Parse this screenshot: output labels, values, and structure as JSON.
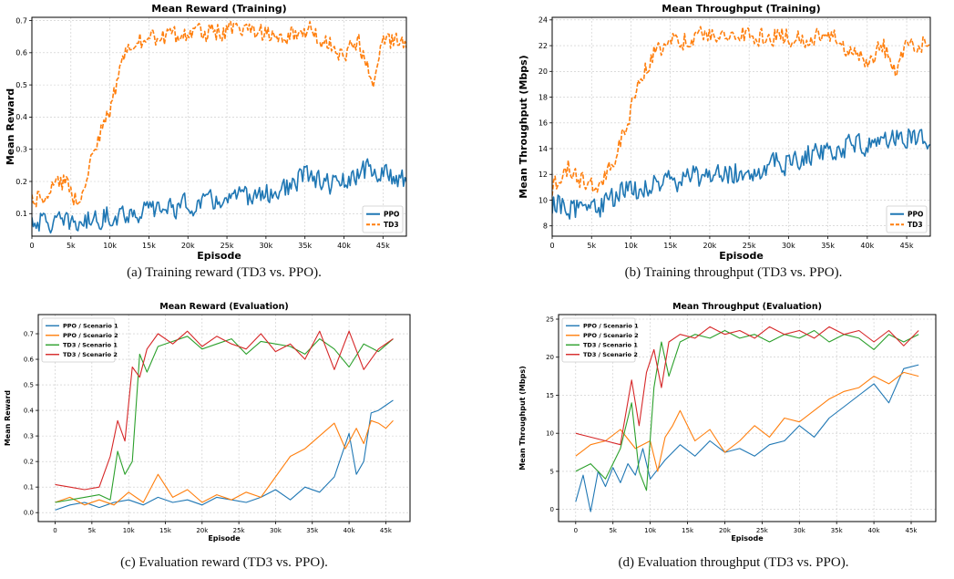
{
  "colors": {
    "ppo": "#1f77b4",
    "td3": "#ff7f0e",
    "td3_s1": "#2ca02c",
    "td3_s2": "#d62728",
    "grid": "#c8c8c8"
  },
  "captions": {
    "a": "(a) Training reward (TD3 vs. PPO).",
    "b": "(b) Training throughput (TD3 vs. PPO).",
    "c": "(c) Evaluation reward (TD3 vs. PPO).",
    "d": "(d) Evaluation throughput (TD3 vs. PPO)."
  },
  "chart_data": [
    {
      "id": "a",
      "type": "line",
      "title": "Mean Reward (Training)",
      "xlabel": "Episode",
      "ylabel": "Mean Reward",
      "xlim": [
        0,
        48000
      ],
      "ylim": [
        0.03,
        0.71
      ],
      "xticks": [
        0,
        5000,
        10000,
        15000,
        20000,
        25000,
        30000,
        35000,
        40000,
        45000
      ],
      "xticklabels": [
        "0",
        "5k",
        "10k",
        "15k",
        "20k",
        "25k",
        "30k",
        "35k",
        "40k",
        "45k"
      ],
      "yticks": [
        0.1,
        0.2,
        0.3,
        0.4,
        0.5,
        0.6,
        0.7
      ],
      "yticklabels": [
        "0.1",
        "0.2",
        "0.3",
        "0.4",
        "0.5",
        "0.6",
        "0.7"
      ],
      "grid": true,
      "legend": "bottom-right",
      "noisy": true,
      "series": [
        {
          "name": "PPO",
          "color": "#1f77b4",
          "dashed": false,
          "noise": 0.02,
          "x": [
            0,
            3000,
            6000,
            9000,
            12000,
            15000,
            18000,
            21000,
            24000,
            27000,
            30000,
            33000,
            35000,
            38000,
            41000,
            43000,
            45000,
            48000
          ],
          "y": [
            0.08,
            0.07,
            0.07,
            0.09,
            0.1,
            0.11,
            0.12,
            0.13,
            0.14,
            0.15,
            0.16,
            0.18,
            0.22,
            0.19,
            0.2,
            0.24,
            0.22,
            0.21
          ]
        },
        {
          "name": "TD3",
          "color": "#ff7f0e",
          "dashed": true,
          "noise": 0.018,
          "x": [
            0,
            2000,
            4000,
            6000,
            8000,
            10000,
            11000,
            12000,
            13000,
            15000,
            18000,
            21000,
            25000,
            30000,
            34000,
            35500,
            37000,
            40000,
            42000,
            43700,
            45000,
            48000
          ],
          "y": [
            0.15,
            0.17,
            0.2,
            0.14,
            0.3,
            0.42,
            0.52,
            0.6,
            0.63,
            0.64,
            0.65,
            0.66,
            0.67,
            0.66,
            0.66,
            0.68,
            0.64,
            0.6,
            0.63,
            0.5,
            0.64,
            0.62
          ]
        }
      ]
    },
    {
      "id": "b",
      "type": "line",
      "title": "Mean Throughput (Training)",
      "xlabel": "Episode",
      "ylabel": "Mean Throughput (Mbps)",
      "xlim": [
        0,
        48000
      ],
      "ylim": [
        7.2,
        24.2
      ],
      "xticks": [
        0,
        5000,
        10000,
        15000,
        20000,
        25000,
        30000,
        35000,
        40000,
        45000
      ],
      "xticklabels": [
        "0",
        "5k",
        "10k",
        "15k",
        "20k",
        "25k",
        "30k",
        "35k",
        "40k",
        "45k"
      ],
      "yticks": [
        8,
        10,
        12,
        14,
        16,
        18,
        20,
        22,
        24
      ],
      "yticklabels": [
        "8",
        "10",
        "12",
        "14",
        "16",
        "18",
        "20",
        "22",
        "24"
      ],
      "grid": true,
      "legend": "bottom-right",
      "noisy": true,
      "series": [
        {
          "name": "PPO",
          "color": "#1f77b4",
          "dashed": false,
          "noise": 0.55,
          "x": [
            0,
            3000,
            6000,
            9000,
            12000,
            15000,
            18000,
            21000,
            24000,
            27000,
            30000,
            33000,
            35000,
            38000,
            41000,
            44000,
            46000,
            48000
          ],
          "y": [
            9.8,
            9.4,
            9.5,
            10.6,
            11.0,
            11.4,
            11.8,
            12.0,
            12.2,
            12.6,
            13.0,
            13.6,
            14.0,
            14.2,
            14.4,
            15.4,
            14.8,
            14.6
          ]
        },
        {
          "name": "TD3",
          "color": "#ff7f0e",
          "dashed": true,
          "noise": 0.45,
          "x": [
            0,
            2000,
            4000,
            6000,
            8000,
            10000,
            11000,
            12000,
            13000,
            15000,
            18000,
            22000,
            26000,
            30000,
            34000,
            35500,
            37000,
            40000,
            42000,
            43700,
            45000,
            48000
          ],
          "y": [
            11.0,
            12.5,
            11.5,
            11.0,
            13.5,
            17.0,
            19.0,
            20.5,
            21.5,
            22.3,
            22.6,
            22.8,
            22.8,
            22.8,
            22.6,
            23.0,
            22.0,
            20.5,
            22.0,
            19.5,
            22.5,
            22.0
          ]
        }
      ]
    },
    {
      "id": "c",
      "type": "line",
      "title": "Mean Reward (Evaluation)",
      "xlabel": "Episode",
      "ylabel": "Mean Reward",
      "xlim": [
        -2300,
        48300
      ],
      "ylim": [
        -0.035,
        0.775
      ],
      "xticks": [
        0,
        5000,
        10000,
        15000,
        20000,
        25000,
        30000,
        35000,
        40000,
        45000
      ],
      "xticklabels": [
        "0",
        "5k",
        "10k",
        "15k",
        "20k",
        "25k",
        "30k",
        "35k",
        "40k",
        "45k"
      ],
      "yticks": [
        0.0,
        0.1,
        0.2,
        0.3,
        0.4,
        0.5,
        0.6,
        0.7
      ],
      "yticklabels": [
        "0.0",
        "0.1",
        "0.2",
        "0.3",
        "0.4",
        "0.5",
        "0.6",
        "0.7"
      ],
      "grid": true,
      "legend": "top-left",
      "noisy": false,
      "series": [
        {
          "name": "PPO / Scenario 1",
          "color": "#1f77b4",
          "dashed": false,
          "x": [
            0,
            2000,
            4000,
            6000,
            8000,
            10000,
            12000,
            14000,
            16000,
            18000,
            20000,
            22000,
            24000,
            26000,
            28000,
            30000,
            32000,
            34000,
            36000,
            38000,
            40000,
            41000,
            42000,
            43000,
            44000,
            45000,
            46000
          ],
          "y": [
            0.01,
            0.03,
            0.04,
            0.02,
            0.04,
            0.05,
            0.03,
            0.06,
            0.04,
            0.05,
            0.03,
            0.06,
            0.05,
            0.04,
            0.06,
            0.09,
            0.05,
            0.1,
            0.08,
            0.14,
            0.31,
            0.15,
            0.2,
            0.39,
            0.4,
            0.42,
            0.44
          ]
        },
        {
          "name": "PPO / Scenario 2",
          "color": "#ff7f0e",
          "dashed": false,
          "x": [
            0,
            2000,
            4000,
            6000,
            8000,
            10000,
            12000,
            14000,
            16000,
            18000,
            20000,
            22000,
            24000,
            26000,
            28000,
            30000,
            32000,
            34000,
            36000,
            38000,
            39500,
            41000,
            42000,
            43000,
            44000,
            45000,
            46000
          ],
          "y": [
            0.04,
            0.06,
            0.03,
            0.05,
            0.03,
            0.08,
            0.04,
            0.15,
            0.06,
            0.09,
            0.04,
            0.07,
            0.05,
            0.08,
            0.06,
            0.14,
            0.22,
            0.25,
            0.3,
            0.35,
            0.25,
            0.33,
            0.27,
            0.36,
            0.35,
            0.33,
            0.36
          ]
        },
        {
          "name": "TD3 / Scenario 1",
          "color": "#2ca02c",
          "dashed": false,
          "x": [
            0,
            2000,
            4000,
            6000,
            7500,
            8500,
            9500,
            10500,
            11500,
            12500,
            14000,
            16000,
            18000,
            20000,
            22000,
            24000,
            26000,
            28000,
            30000,
            32000,
            34000,
            36000,
            38000,
            40000,
            42000,
            44000,
            46000
          ],
          "y": [
            0.04,
            0.05,
            0.06,
            0.07,
            0.05,
            0.24,
            0.15,
            0.2,
            0.62,
            0.55,
            0.65,
            0.67,
            0.69,
            0.64,
            0.66,
            0.68,
            0.62,
            0.67,
            0.66,
            0.65,
            0.62,
            0.68,
            0.64,
            0.57,
            0.66,
            0.63,
            0.68
          ]
        },
        {
          "name": "TD3 / Scenario 2",
          "color": "#d62728",
          "dashed": false,
          "x": [
            0,
            2000,
            4000,
            6000,
            7500,
            8500,
            9500,
            10500,
            11500,
            12500,
            14000,
            16000,
            18000,
            20000,
            22000,
            24000,
            26000,
            28000,
            30000,
            32000,
            34000,
            36000,
            38000,
            40000,
            42000,
            44000,
            46000
          ],
          "y": [
            0.11,
            0.1,
            0.09,
            0.1,
            0.22,
            0.36,
            0.28,
            0.57,
            0.53,
            0.64,
            0.7,
            0.66,
            0.71,
            0.65,
            0.69,
            0.66,
            0.64,
            0.7,
            0.63,
            0.66,
            0.6,
            0.71,
            0.56,
            0.71,
            0.56,
            0.64,
            0.68
          ]
        }
      ]
    },
    {
      "id": "d",
      "type": "line",
      "title": "Mean Throughput (Evaluation)",
      "xlabel": "Episode",
      "ylabel": "Mean Throughput (Mbps)",
      "xlim": [
        -2300,
        48300
      ],
      "ylim": [
        -1.6,
        25.6
      ],
      "xticks": [
        0,
        5000,
        10000,
        15000,
        20000,
        25000,
        30000,
        35000,
        40000,
        45000
      ],
      "xticklabels": [
        "0",
        "5k",
        "10k",
        "15k",
        "20k",
        "25k",
        "30k",
        "35k",
        "40k",
        "45k"
      ],
      "yticks": [
        0,
        5,
        10,
        15,
        20,
        25
      ],
      "yticklabels": [
        "0",
        "5",
        "10",
        "15",
        "20",
        "25"
      ],
      "grid": true,
      "legend": "top-left",
      "noisy": false,
      "series": [
        {
          "name": "PPO / Scenario 1",
          "color": "#1f77b4",
          "dashed": false,
          "x": [
            0,
            1000,
            2000,
            3000,
            4000,
            5000,
            6000,
            7000,
            8000,
            9000,
            10000,
            12000,
            14000,
            16000,
            18000,
            20000,
            22000,
            24000,
            26000,
            28000,
            30000,
            32000,
            34000,
            36000,
            38000,
            40000,
            42000,
            44000,
            46000
          ],
          "y": [
            1.0,
            4.5,
            -0.3,
            5.0,
            3.0,
            5.5,
            3.5,
            6.0,
            4.5,
            8.0,
            4.0,
            6.5,
            8.5,
            7.0,
            9.0,
            7.5,
            8.0,
            7.0,
            8.5,
            9.0,
            11.0,
            9.5,
            12.0,
            13.5,
            15.0,
            16.5,
            14.0,
            18.5,
            19.0
          ]
        },
        {
          "name": "PPO / Scenario 2",
          "color": "#ff7f0e",
          "dashed": false,
          "x": [
            0,
            2000,
            4000,
            6000,
            8000,
            10000,
            11000,
            12000,
            13000,
            14000,
            16000,
            18000,
            20000,
            22000,
            24000,
            26000,
            28000,
            30000,
            32000,
            34000,
            36000,
            38000,
            40000,
            42000,
            44000,
            46000
          ],
          "y": [
            7.0,
            8.5,
            9.0,
            10.5,
            8.0,
            9.0,
            5.0,
            9.5,
            11.0,
            13.0,
            9.0,
            10.5,
            7.5,
            9.0,
            11.0,
            9.5,
            12.0,
            11.5,
            13.0,
            14.5,
            15.5,
            16.0,
            17.5,
            16.5,
            18.0,
            17.5
          ]
        },
        {
          "name": "TD3 / Scenario 1",
          "color": "#2ca02c",
          "dashed": false,
          "x": [
            0,
            2000,
            4000,
            6000,
            7500,
            8500,
            9500,
            10500,
            11500,
            12500,
            14000,
            16000,
            18000,
            20000,
            22000,
            24000,
            26000,
            28000,
            30000,
            32000,
            34000,
            36000,
            38000,
            40000,
            42000,
            44000,
            46000
          ],
          "y": [
            5.0,
            6.0,
            4.0,
            8.0,
            14.0,
            5.0,
            2.5,
            16.0,
            22.0,
            17.5,
            22.0,
            23.0,
            22.5,
            23.5,
            22.5,
            23.0,
            22.0,
            23.0,
            22.5,
            23.5,
            22.0,
            23.0,
            22.5,
            21.0,
            23.0,
            22.0,
            23.0
          ]
        },
        {
          "name": "TD3 / Scenario 2",
          "color": "#d62728",
          "dashed": false,
          "x": [
            0,
            2000,
            4000,
            6000,
            7500,
            8500,
            9500,
            10500,
            11500,
            12500,
            14000,
            16000,
            18000,
            20000,
            22000,
            24000,
            26000,
            28000,
            30000,
            32000,
            34000,
            36000,
            38000,
            40000,
            42000,
            44000,
            46000
          ],
          "y": [
            10.0,
            9.5,
            9.0,
            8.5,
            17.0,
            11.0,
            18.0,
            21.0,
            16.0,
            22.0,
            23.0,
            22.5,
            24.0,
            23.0,
            23.5,
            22.5,
            24.0,
            23.0,
            23.5,
            22.5,
            24.0,
            23.0,
            23.5,
            22.0,
            23.5,
            21.5,
            23.5
          ]
        }
      ]
    }
  ]
}
